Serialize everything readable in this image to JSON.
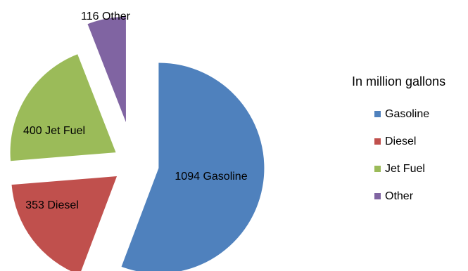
{
  "chart_data": {
    "type": "pie",
    "title": "",
    "legend_title": "In million gallons",
    "legend_position": "right",
    "exploded": true,
    "slices": [
      {
        "name": "Gasoline",
        "value": 1094,
        "label": "1094 Gasoline",
        "color": "#4F81BD"
      },
      {
        "name": "Diesel",
        "value": 353,
        "label": "353 Diesel",
        "color": "#C0504D"
      },
      {
        "name": "Jet Fuel",
        "value": 400,
        "label": "400 Jet Fuel",
        "color": "#9BBB59"
      },
      {
        "name": "Other",
        "value": 116,
        "label": "116 Other",
        "color": "#8064A2"
      }
    ]
  }
}
